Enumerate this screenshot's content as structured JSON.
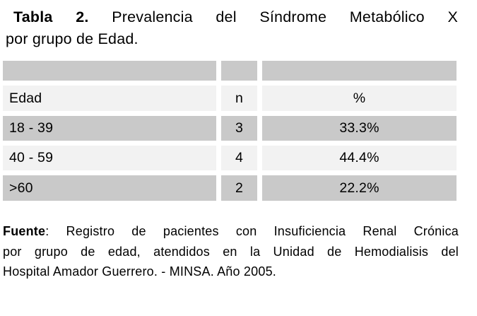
{
  "title": {
    "bold": "Tabla 2.",
    "line1_rest": "Prevalencia del Síndrome Metabólico X",
    "line2": "por grupo de Edad."
  },
  "table": {
    "columns": {
      "edad": "Edad",
      "n": "n",
      "pct": "%"
    },
    "rows": [
      {
        "edad": "18 - 39",
        "n": "3",
        "pct": "33.3%"
      },
      {
        "edad": "40 - 59",
        "n": "4",
        "pct": "44.4%"
      },
      {
        "edad": ">60",
        "n": "2",
        "pct": "22.2%"
      }
    ]
  },
  "source_note": {
    "bold": "Fuente",
    "line1_rest": ": Registro de pacientes con Insuficiencia Renal Crónica",
    "line2": "por grupo de edad, atendidos en la Unidad de Hemodialisis del",
    "line3": "Hospital Amador Guerrero. - MINSA. Año 2005."
  },
  "colors": {
    "row_gray": "#c9c9c9",
    "row_light": "#f2f2f2",
    "text_color": "#000000",
    "background": "#ffffff"
  }
}
